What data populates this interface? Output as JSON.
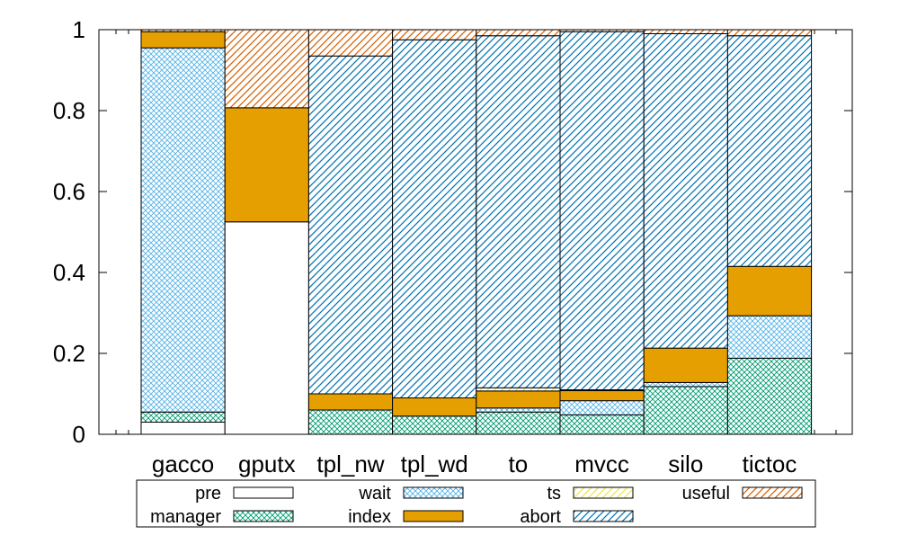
{
  "chart_data": {
    "type": "bar",
    "stacked": true,
    "normalized": true,
    "title": "",
    "xlabel": "",
    "ylabel": "",
    "ylim": [
      0,
      1
    ],
    "yticks": [
      0,
      0.2,
      0.4,
      0.6,
      0.8,
      1
    ],
    "ytick_labels": [
      "0",
      "0.2",
      "0.4",
      "0.6",
      "0.8",
      "1"
    ],
    "categories": [
      "gacco",
      "gputx",
      "tpl_nw",
      "tpl_wd",
      "to",
      "mvcc",
      "silo",
      "tictoc"
    ],
    "legend_position": "bottom",
    "legend_columns": 4,
    "series": [
      {
        "name": "pre",
        "pattern": "none",
        "color": "#ffffff",
        "values": [
          0.03,
          0.525,
          0.0,
          0.0,
          0.0,
          0.0,
          0.0,
          0.0
        ]
      },
      {
        "name": "manager",
        "pattern": "cross",
        "color": "#009e73",
        "values": [
          0.025,
          0.0,
          0.06,
          0.045,
          0.055,
          0.048,
          0.118,
          0.188
        ]
      },
      {
        "name": "wait",
        "pattern": "cross",
        "color": "#56b4e9",
        "values": [
          0.9,
          0.0,
          0.0,
          0.0,
          0.01,
          0.035,
          0.01,
          0.105
        ]
      },
      {
        "name": "index",
        "pattern": "solid",
        "color": "#e69f00",
        "values": [
          0.04,
          0.282,
          0.04,
          0.045,
          0.042,
          0.025,
          0.085,
          0.122
        ]
      },
      {
        "name": "ts",
        "pattern": "right",
        "color": "#f0e442",
        "values": [
          0.0,
          0.0,
          0.0,
          0.0,
          0.008,
          0.002,
          0.0,
          0.0
        ]
      },
      {
        "name": "abort",
        "pattern": "right",
        "color": "#0072b2",
        "values": [
          0.0,
          0.0,
          0.835,
          0.885,
          0.87,
          0.885,
          0.777,
          0.57
        ]
      },
      {
        "name": "useful",
        "pattern": "right",
        "color": "#d55e00",
        "values": [
          0.005,
          0.193,
          0.065,
          0.025,
          0.015,
          0.005,
          0.01,
          0.015
        ]
      }
    ]
  }
}
